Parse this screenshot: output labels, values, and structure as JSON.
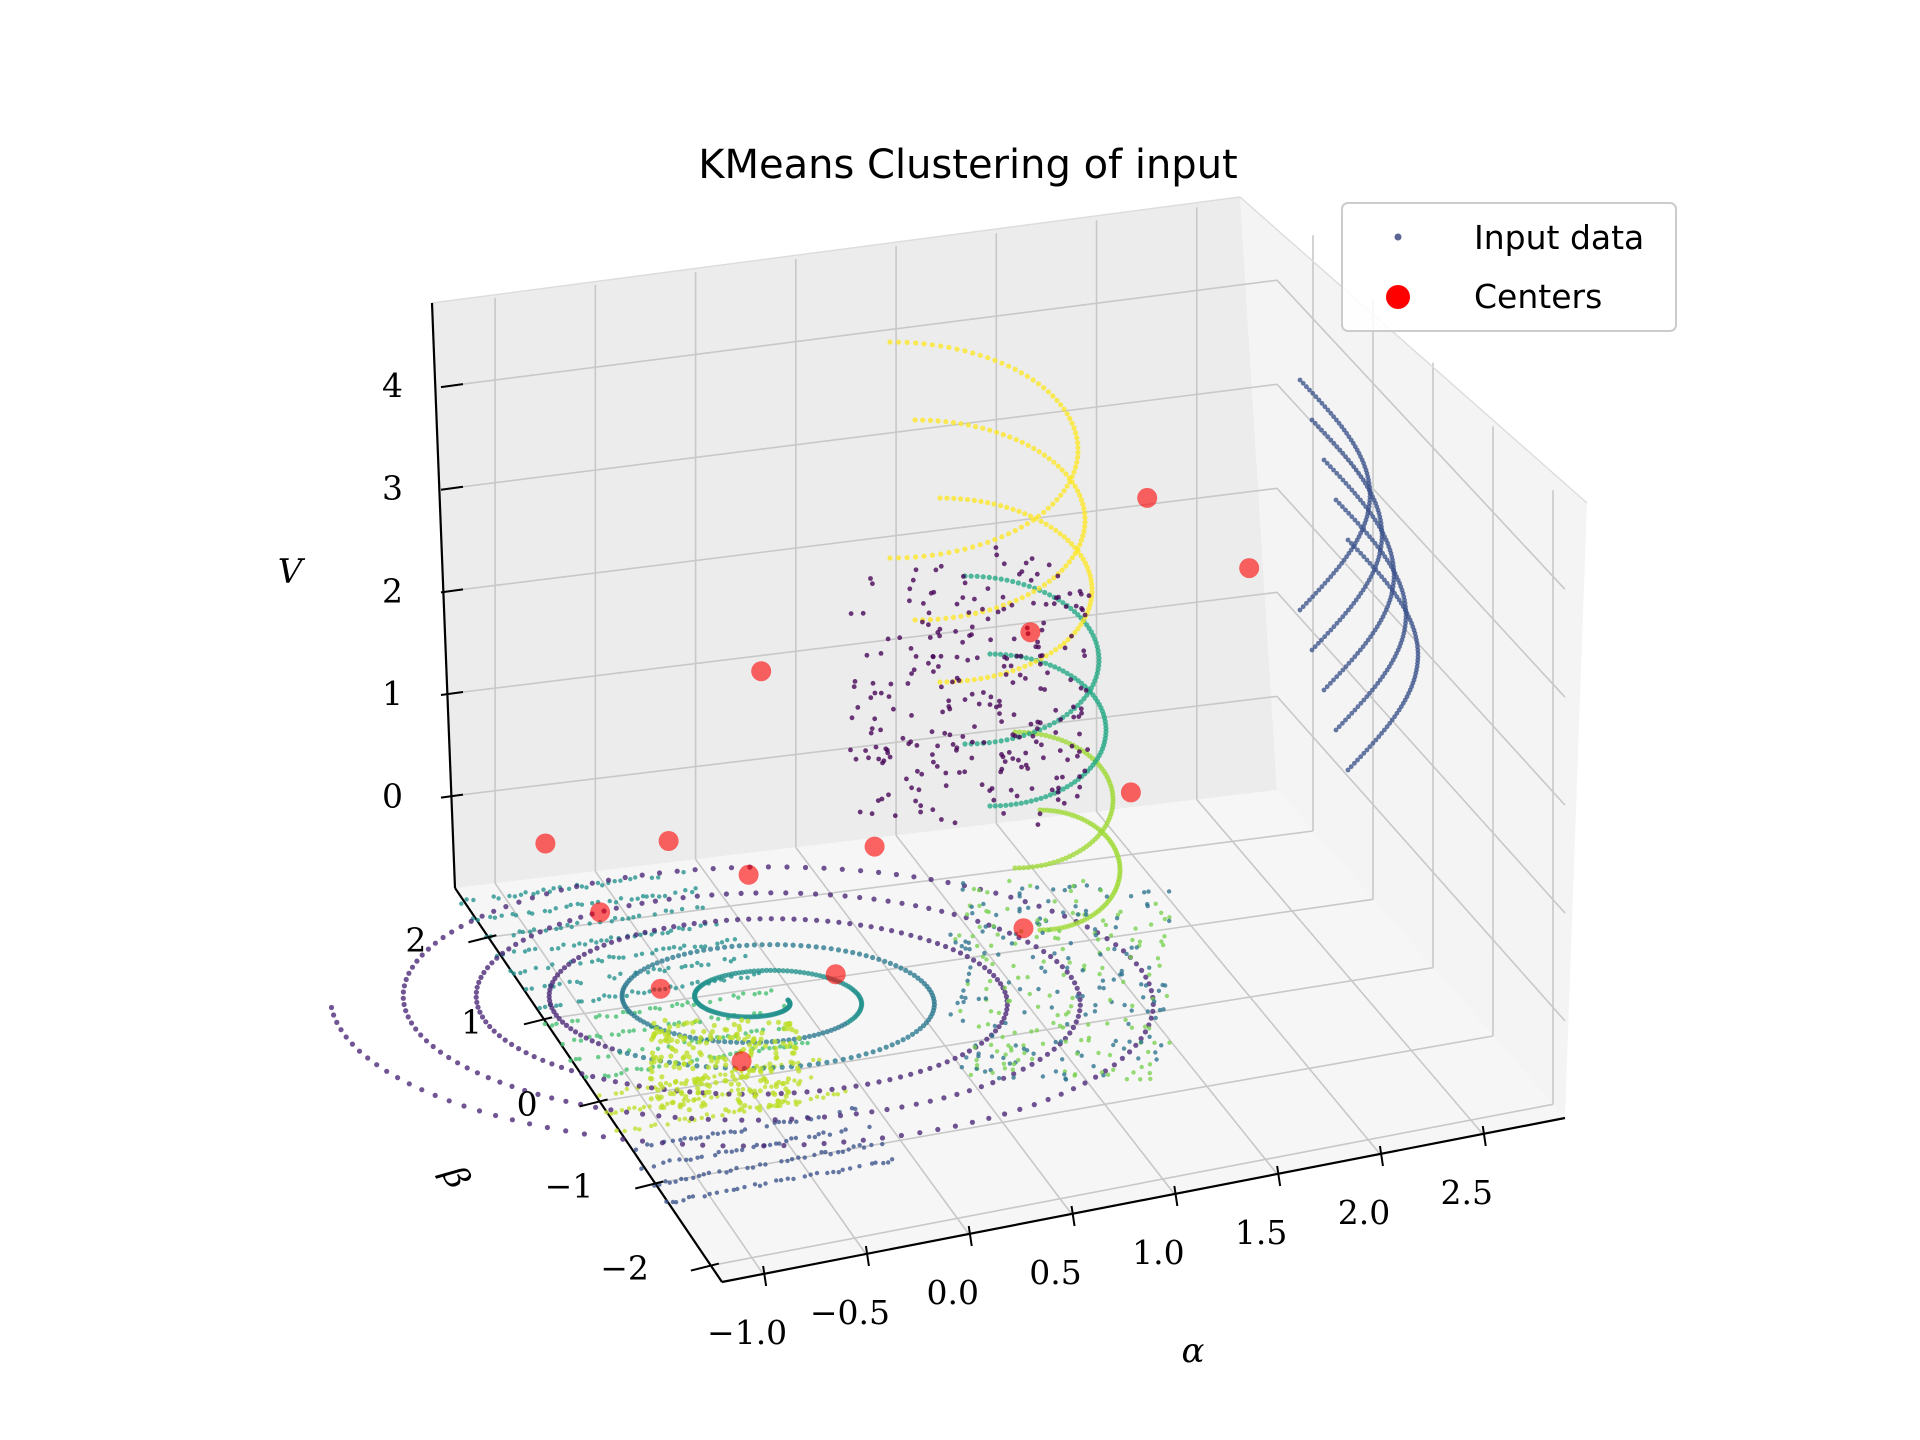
{
  "chart_data": {
    "type": "scatter3d",
    "title": "KMeans Clustering of input",
    "xlabel": "α",
    "ylabel": "β",
    "zlabel": "V",
    "xlim": [
      -1.2,
      2.9
    ],
    "ylim": [
      -2.2,
      2.6
    ],
    "zlim": [
      -0.9,
      4.8
    ],
    "x_ticks": [
      -1.0,
      -0.5,
      0.0,
      0.5,
      1.0,
      1.5,
      2.0,
      2.5
    ],
    "x_tick_labels": [
      "−1.0",
      "−0.5",
      "0.0",
      "0.5",
      "1.0",
      "1.5",
      "2.0",
      "2.5"
    ],
    "y_ticks": [
      -2,
      -1,
      0,
      1,
      2
    ],
    "y_tick_labels": [
      "−2",
      "−1",
      "0",
      "1",
      "2"
    ],
    "z_ticks": [
      0,
      1,
      2,
      3,
      4
    ],
    "z_tick_labels": [
      "0",
      "1",
      "2",
      "3",
      "4"
    ],
    "grid": true,
    "legend": {
      "position": "top-right",
      "entries": [
        {
          "label": "Input data",
          "marker": "small-dot",
          "color": "#5b6593"
        },
        {
          "label": "Centers",
          "marker": "circle",
          "color": "#ff0000"
        }
      ]
    },
    "cluster_colors": [
      "#440154",
      "#482475",
      "#414487",
      "#355f8d",
      "#2a788e",
      "#21918c",
      "#22a884",
      "#44bf70",
      "#7ad151",
      "#bddf26",
      "#fde725",
      "#3b528b",
      "#2c728e",
      "#a0da39"
    ],
    "centers": [
      {
        "x": -0.75,
        "y": -0.9,
        "z": 0.05
      },
      {
        "x": -0.9,
        "y": 0.0,
        "z": 0.1
      },
      {
        "x": -0.95,
        "y": 0.9,
        "z": 0.15
      },
      {
        "x": -1.0,
        "y": 1.7,
        "z": 0.2
      },
      {
        "x": -0.5,
        "y": 1.3,
        "z": 0.4
      },
      {
        "x": -0.3,
        "y": 0.6,
        "z": 0.55
      },
      {
        "x": -0.15,
        "y": -0.4,
        "z": 0.3
      },
      {
        "x": 0.35,
        "y": 0.7,
        "z": 0.55
      },
      {
        "x": 0.8,
        "y": -0.3,
        "z": 0.35
      },
      {
        "x": 0.1,
        "y": 1.8,
        "z": 1.5
      },
      {
        "x": 1.5,
        "y": 0.3,
        "z": 1.0
      },
      {
        "x": 1.35,
        "y": 1.5,
        "z": 1.75
      },
      {
        "x": 1.9,
        "y": 1.4,
        "z": 2.95
      },
      {
        "x": 2.2,
        "y": 0.7,
        "z": 2.65
      }
    ]
  }
}
